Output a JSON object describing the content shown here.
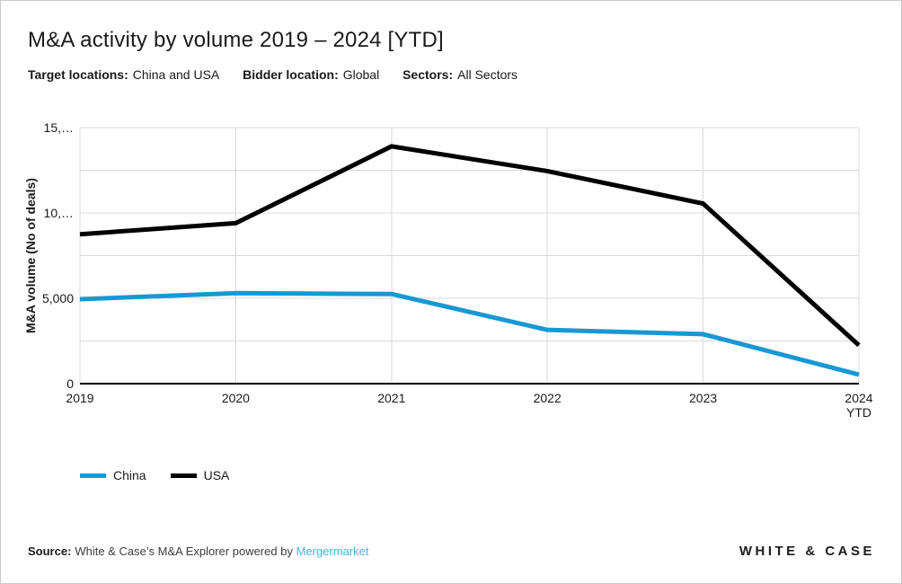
{
  "header": {
    "title": "M&A activity by volume 2019 – 2024 [YTD]",
    "filters": [
      {
        "label": "Target locations:",
        "value": "China and USA"
      },
      {
        "label": "Bidder location:",
        "value": "Global"
      },
      {
        "label": "Sectors:",
        "value": "All Sectors"
      }
    ]
  },
  "chart_data": {
    "type": "line",
    "title": "M&A activity by volume 2019 – 2024 [YTD]",
    "categories": [
      "2019",
      "2020",
      "2021",
      "2022",
      "2023",
      "2024 YTD"
    ],
    "series": [
      {
        "name": "China",
        "color": "#1798d3",
        "values": [
          4950,
          5300,
          5250,
          3150,
          2900,
          530
        ]
      },
      {
        "name": "USA",
        "color": "#000000",
        "values": [
          8750,
          9400,
          13900,
          12450,
          10550,
          2250
        ]
      }
    ],
    "xlabel": "",
    "ylabel": "M&A volume (No of deals)",
    "ylim": [
      0,
      15000
    ],
    "grid": true,
    "grid_step": 2500,
    "yticks": [
      {
        "value": 0,
        "label": "0"
      },
      {
        "value": 5000,
        "label": "5,000"
      },
      {
        "value": 10000,
        "label": "10,…"
      },
      {
        "value": 15000,
        "label": "15,…"
      }
    ],
    "legend_position": "bottom-left"
  },
  "footer": {
    "source_label": "Source:",
    "source_text": "White & Case’s M&A Explorer powered by",
    "source_link": "Mergermarket"
  },
  "logo": {
    "text": "WHITE & CASE"
  },
  "colors": {
    "accent_blue": "#1798d3",
    "link_blue": "#45b5dc",
    "grid": "#d9d9d9",
    "axis": "#000000",
    "text": "#1a1a1a",
    "border": "#c9c9c9"
  }
}
